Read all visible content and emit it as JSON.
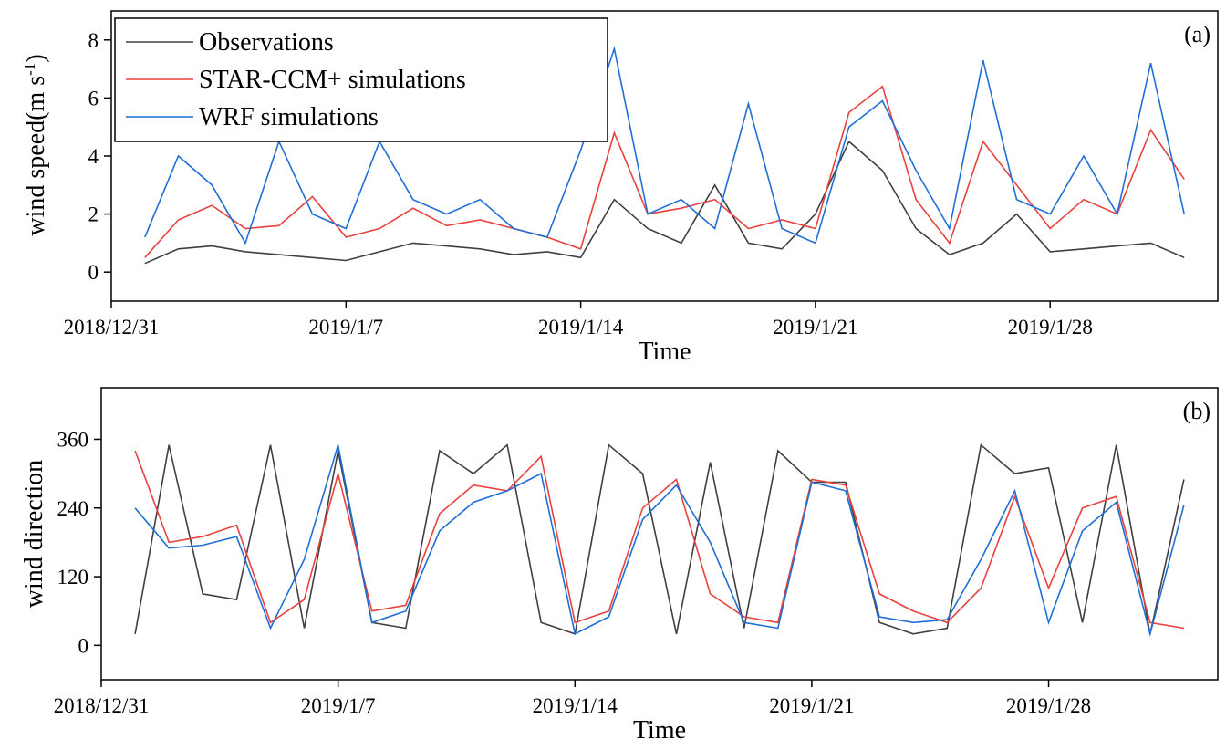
{
  "chart_data": [
    {
      "type": "line",
      "annotation": "(a)",
      "x_label": "Time",
      "y_label": "wind speed(m s",
      "y_label_sup": "-1",
      "y_label_end": ")",
      "legend": "upper left",
      "x": [
        "2019/1/1",
        "2019/1/2",
        "2019/1/3",
        "2019/1/4",
        "2019/1/5",
        "2019/1/6",
        "2019/1/7",
        "2019/1/8",
        "2019/1/9",
        "2019/1/10",
        "2019/1/11",
        "2019/1/12",
        "2019/1/13",
        "2019/1/14",
        "2019/1/15",
        "2019/1/16",
        "2019/1/17",
        "2019/1/18",
        "2019/1/19",
        "2019/1/20",
        "2019/1/21",
        "2019/1/22",
        "2019/1/23",
        "2019/1/24",
        "2019/1/25",
        "2019/1/26",
        "2019/1/27",
        "2019/1/28",
        "2019/1/29",
        "2019/1/30",
        "2019/1/31",
        "2019/2/1"
      ],
      "xlim": [
        "2018/12/31",
        "2019/2/2"
      ],
      "xticks": [
        "2018/12/31",
        "2019/1/7",
        "2019/1/14",
        "2019/1/21",
        "2019/1/28"
      ],
      "ylim": [
        -1,
        9
      ],
      "yticks": [
        0,
        2,
        4,
        6,
        8
      ],
      "series": [
        {
          "name": "Observations",
          "color": "#404040",
          "values": [
            0.3,
            0.8,
            0.9,
            0.7,
            0.6,
            0.5,
            0.4,
            0.7,
            1.0,
            0.9,
            0.8,
            0.6,
            0.7,
            0.5,
            2.5,
            1.5,
            1.0,
            3.0,
            1.0,
            0.8,
            2.0,
            4.5,
            3.5,
            1.5,
            0.6,
            1.0,
            2.0,
            0.7,
            0.8,
            0.9,
            1.0,
            0.5
          ]
        },
        {
          "name": "STAR-CCM+ simulations",
          "color": "#e8423f",
          "values": [
            0.5,
            1.8,
            2.3,
            1.5,
            1.6,
            2.6,
            1.2,
            1.5,
            2.2,
            1.6,
            1.8,
            1.5,
            1.2,
            0.8,
            4.8,
            2.0,
            2.2,
            2.5,
            1.5,
            1.8,
            1.5,
            5.5,
            6.4,
            2.5,
            1.0,
            4.5,
            3.0,
            1.5,
            2.5,
            2.0,
            4.9,
            3.2
          ]
        },
        {
          "name": "WRF simulations",
          "color": "#1f6fd6",
          "values": [
            1.2,
            4.0,
            3.0,
            1.0,
            4.5,
            2.0,
            1.5,
            4.5,
            2.5,
            2.0,
            2.5,
            1.5,
            1.2,
            4.2,
            7.7,
            2.0,
            2.5,
            1.5,
            5.8,
            1.5,
            1.0,
            5.0,
            5.9,
            3.5,
            1.5,
            7.3,
            2.5,
            2.0,
            4.0,
            2.0,
            7.2,
            2.0
          ]
        }
      ]
    },
    {
      "type": "line",
      "annotation": "(b)",
      "x_label": "Time",
      "y_label": "wind direction",
      "x": [
        "2019/1/1",
        "2019/1/2",
        "2019/1/3",
        "2019/1/4",
        "2019/1/5",
        "2019/1/6",
        "2019/1/7",
        "2019/1/8",
        "2019/1/9",
        "2019/1/10",
        "2019/1/11",
        "2019/1/12",
        "2019/1/13",
        "2019/1/14",
        "2019/1/15",
        "2019/1/16",
        "2019/1/17",
        "2019/1/18",
        "2019/1/19",
        "2019/1/20",
        "2019/1/21",
        "2019/1/22",
        "2019/1/23",
        "2019/1/24",
        "2019/1/25",
        "2019/1/26",
        "2019/1/27",
        "2019/1/28",
        "2019/1/29",
        "2019/1/30",
        "2019/1/31",
        "2019/2/1"
      ],
      "xlim": [
        "2018/12/31",
        "2019/2/2"
      ],
      "xticks": [
        "2018/12/31",
        "2019/1/7",
        "2019/1/14",
        "2019/1/21",
        "2019/1/28"
      ],
      "ylim": [
        -60,
        450
      ],
      "yticks": [
        0,
        120,
        240,
        360
      ],
      "series": [
        {
          "color": "#404040",
          "values": [
            20,
            350,
            90,
            80,
            350,
            30,
            340,
            40,
            30,
            340,
            300,
            350,
            40,
            20,
            350,
            300,
            20,
            320,
            30,
            340,
            285,
            285,
            40,
            20,
            30,
            350,
            300,
            310,
            40,
            350,
            20,
            290
          ]
        },
        {
          "color": "#e8423f",
          "values": [
            340,
            180,
            190,
            210,
            40,
            80,
            300,
            60,
            70,
            230,
            280,
            270,
            330,
            40,
            60,
            240,
            290,
            90,
            50,
            40,
            290,
            280,
            90,
            60,
            40,
            100,
            260,
            100,
            240,
            260,
            40,
            30
          ]
        },
        {
          "color": "#1f6fd6",
          "values": [
            240,
            170,
            175,
            190,
            30,
            150,
            350,
            40,
            60,
            200,
            250,
            270,
            300,
            20,
            50,
            220,
            280,
            180,
            40,
            30,
            285,
            270,
            50,
            40,
            45,
            150,
            270,
            40,
            200,
            250,
            20,
            245
          ]
        }
      ]
    }
  ]
}
